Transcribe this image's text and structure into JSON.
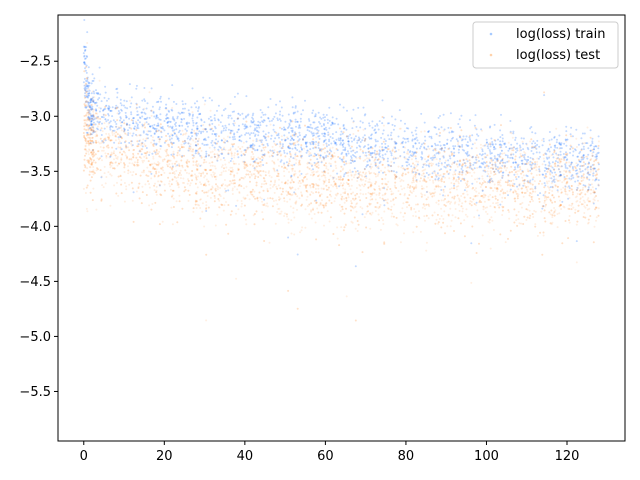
{
  "chart_data": {
    "type": "scatter",
    "title": "",
    "xlabel": "",
    "ylabel": "",
    "xlim": [
      -6.4,
      134.4
    ],
    "ylim": [
      -5.95,
      -2.08
    ],
    "x_ticks": [
      0,
      20,
      40,
      60,
      80,
      100,
      120
    ],
    "x_tick_labels": [
      "0",
      "20",
      "40",
      "60",
      "80",
      "100",
      "120"
    ],
    "y_ticks": [
      -2.5,
      -3.0,
      -3.5,
      -4.0,
      -4.5,
      -5.0,
      -5.5
    ],
    "y_tick_labels": [
      "−2.5",
      "−3.0",
      "−3.5",
      "−4.0",
      "−4.5",
      "−5.0",
      "−5.5"
    ],
    "grid": false,
    "legend_position": "upper right",
    "series": [
      {
        "name": "log(loss) train",
        "color": "#0066ff",
        "marker_alpha": 0.12,
        "x_range": [
          0,
          128
        ],
        "trend": [
          {
            "x": 0,
            "y": -2.35
          },
          {
            "x": 0.5,
            "y": -2.75
          },
          {
            "x": 2,
            "y": -2.95
          },
          {
            "x": 10,
            "y": -3.05
          },
          {
            "x": 40,
            "y": -3.15
          },
          {
            "x": 80,
            "y": -3.3
          },
          {
            "x": 128,
            "y": -3.45
          }
        ],
        "spread": 0.14
      },
      {
        "name": "log(loss) test",
        "color": "#ff7f0e",
        "marker_alpha": 0.12,
        "x_range": [
          0,
          128
        ],
        "trend": [
          {
            "x": 0,
            "y": -3.05
          },
          {
            "x": 2,
            "y": -3.25
          },
          {
            "x": 20,
            "y": -3.45
          },
          {
            "x": 60,
            "y": -3.6
          },
          {
            "x": 128,
            "y": -3.65
          }
        ],
        "spread": 0.2
      }
    ]
  }
}
